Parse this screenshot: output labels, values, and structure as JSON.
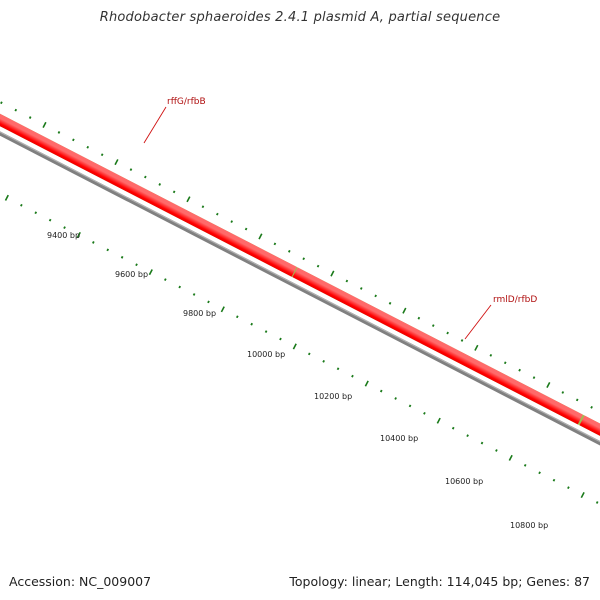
{
  "title": "Rhodobacter sphaeroides 2.4.1 plasmid A, partial sequence",
  "footer": {
    "accession": "Accession: NC_009007",
    "stats": "Topology: linear; Length: 114,045 bp; Genes: 87"
  },
  "colors": {
    "gene_olive": "#6b8e23",
    "gene_red": "#ff0000",
    "backbone": "#808080",
    "tick": "#1a7a1a",
    "label_red": "#b01010"
  },
  "scale": {
    "unit": "bp",
    "labels": [
      "9400 bp",
      "9600 bp",
      "9800 bp",
      "10000 bp",
      "10200 bp",
      "10400 bp",
      "10600 bp",
      "10800 bp"
    ]
  },
  "genes": [
    {
      "name": "rffG/rfbB",
      "track": "olive"
    },
    {
      "name": "rmlD/rfbD",
      "track": "olive"
    }
  ]
}
